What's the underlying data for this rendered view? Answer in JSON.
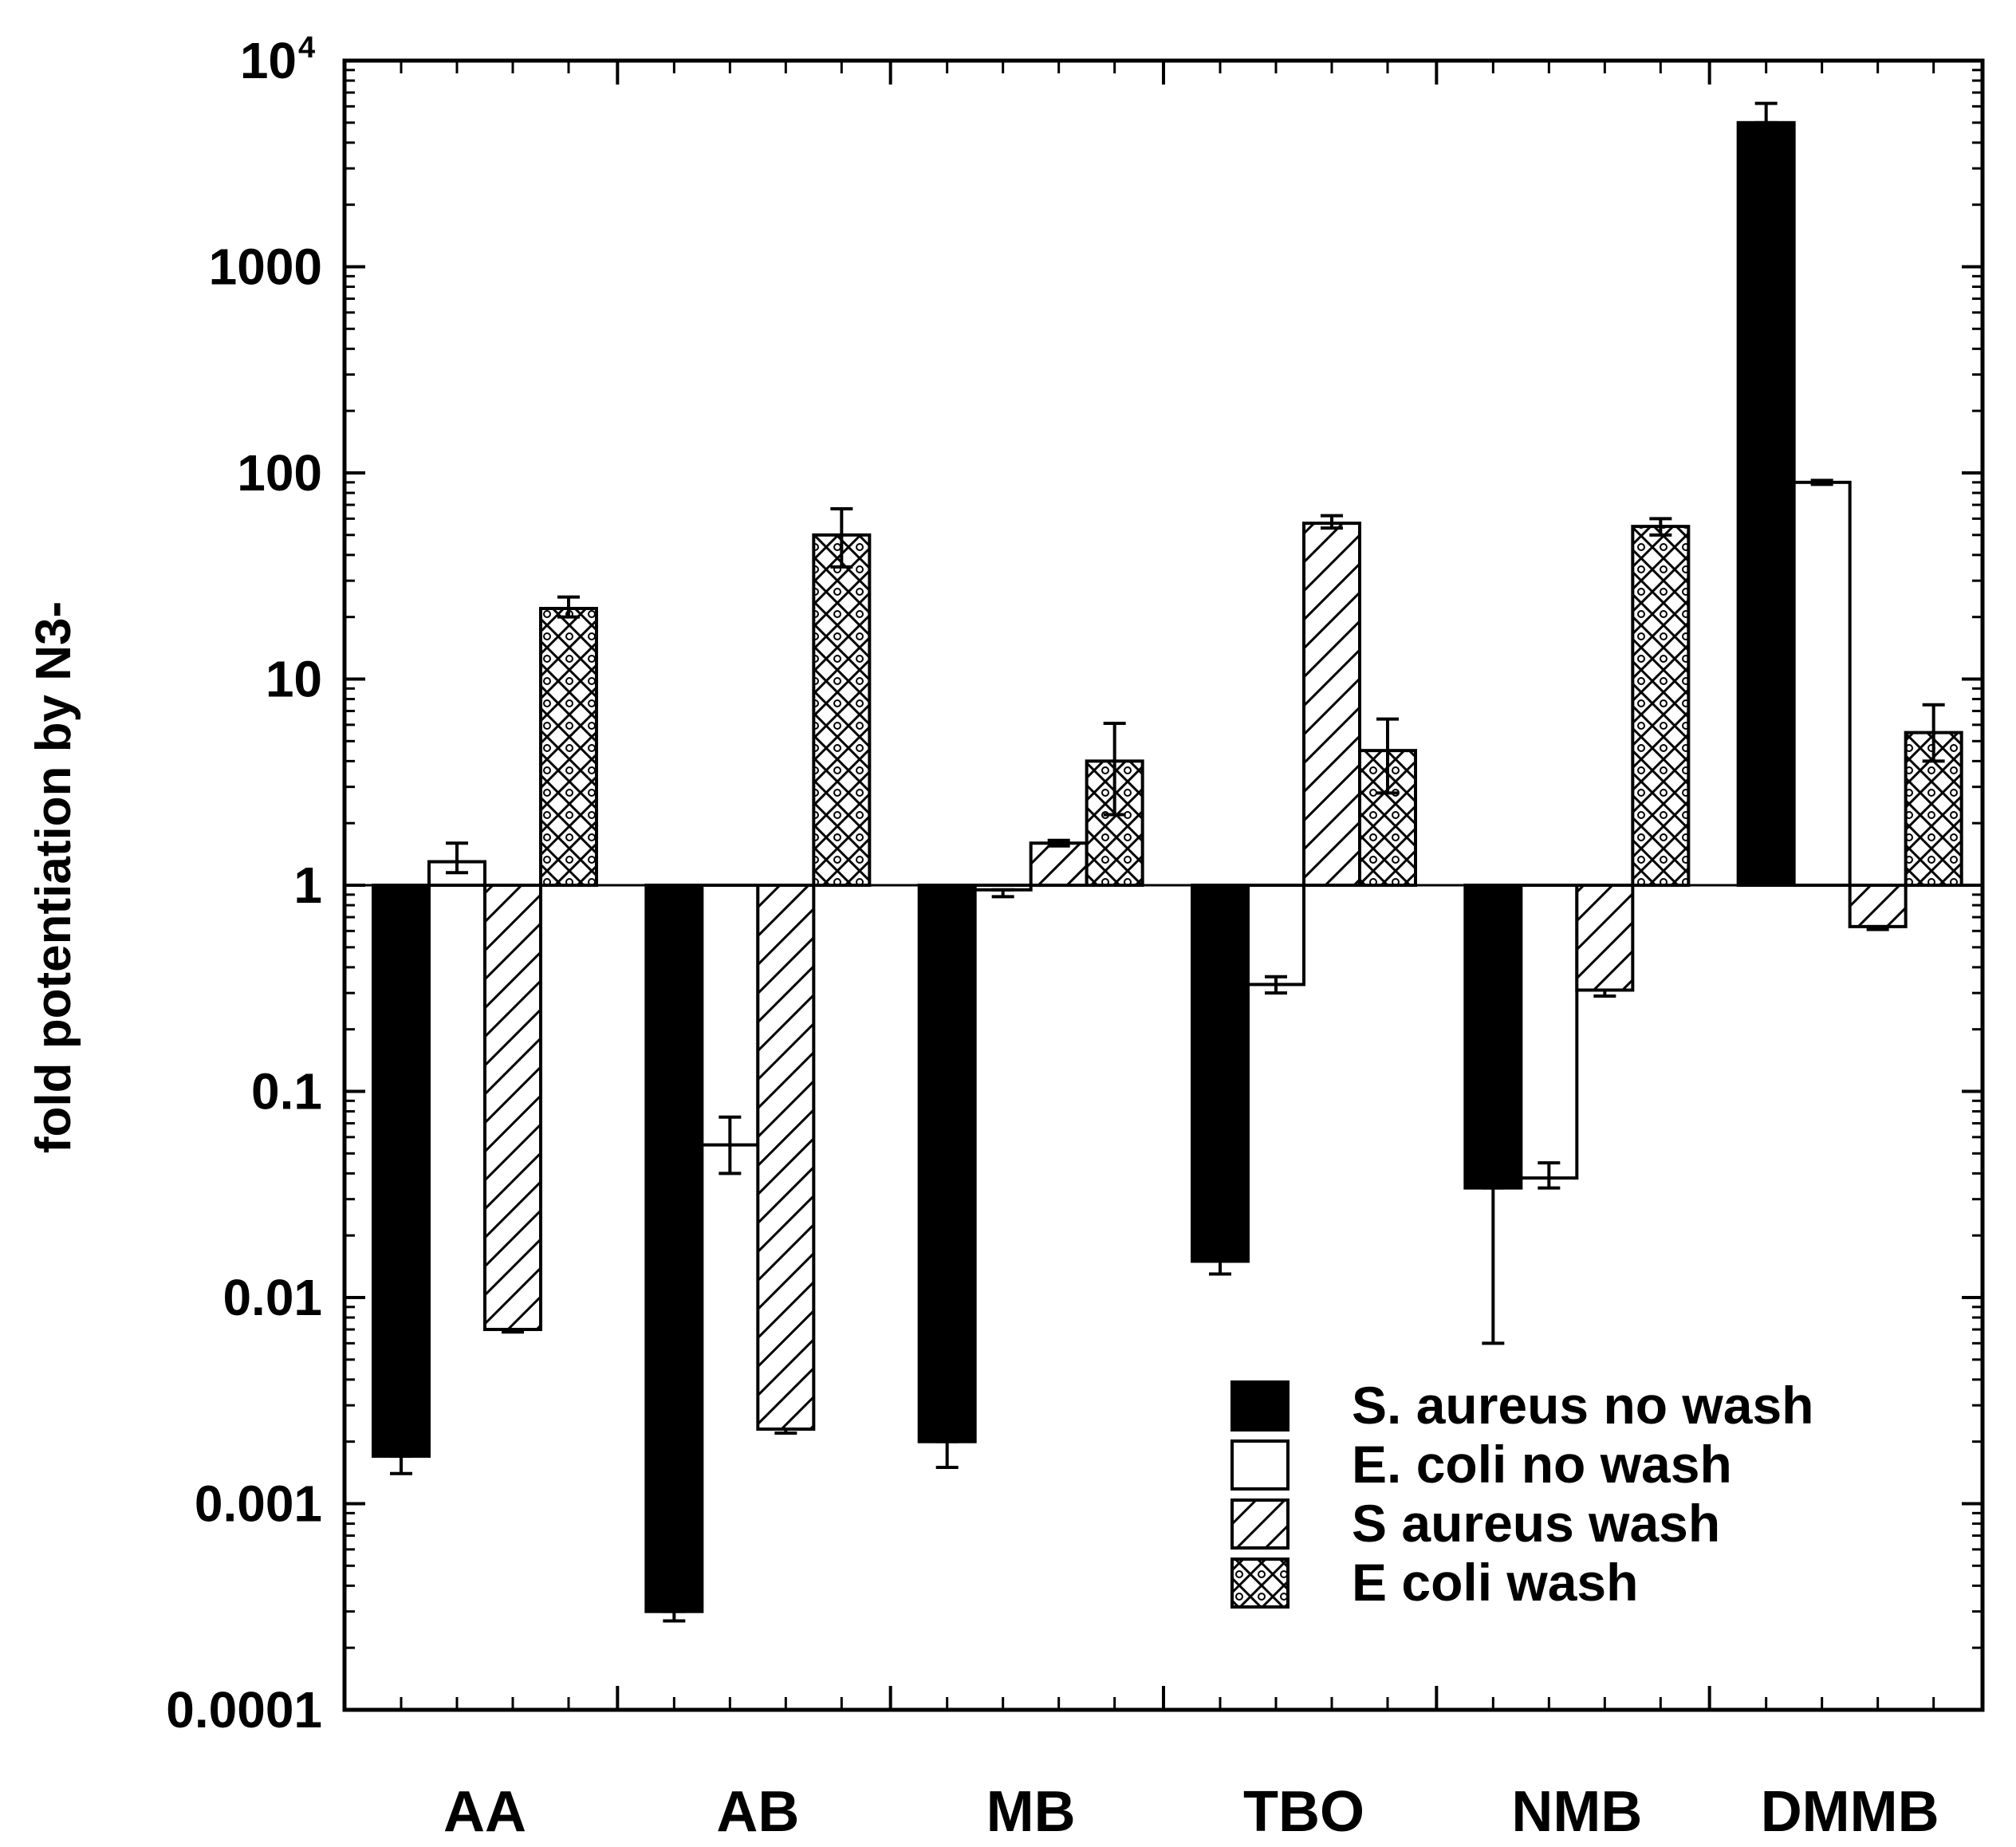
{
  "chart_data": {
    "type": "bar",
    "title": "",
    "xlabel": "",
    "ylabel": "fold potentiation by N3-",
    "yscale": "log",
    "ylim": [
      0.0001,
      10000
    ],
    "baseline": 1,
    "categories": [
      "AA",
      "AB",
      "MB",
      "TBO",
      "NMB",
      "DMMB"
    ],
    "series": [
      {
        "name": "S. aureus no wash",
        "fill": "solid",
        "values": [
          0.0017,
          0.0003,
          0.002,
          0.015,
          0.034,
          5000
        ],
        "err_low": [
          0.0014,
          0.00027,
          0.0015,
          0.013,
          0.006,
          5000
        ],
        "err_high": [
          0.0017,
          0.0003,
          0.002,
          0.015,
          0.034,
          6200
        ]
      },
      {
        "name": "E. coli no wash",
        "fill": "open",
        "values": [
          1.3,
          0.055,
          0.95,
          0.33,
          0.038,
          90
        ],
        "err_low": [
          1.15,
          0.04,
          0.88,
          0.3,
          0.034,
          88
        ],
        "err_high": [
          1.6,
          0.075,
          0.95,
          0.36,
          0.045,
          92
        ]
      },
      {
        "name": "S aureus wash",
        "fill": "hatch",
        "values": [
          0.007,
          0.0023,
          1.6,
          57,
          0.31,
          0.63
        ],
        "err_low": [
          0.0068,
          0.0022,
          1.55,
          54,
          0.29,
          0.61
        ],
        "err_high": [
          0.007,
          0.0023,
          1.65,
          62,
          0.31,
          0.63
        ]
      },
      {
        "name": "E coli wash",
        "fill": "circles",
        "values": [
          22,
          50,
          4,
          4.5,
          55,
          5.5
        ],
        "err_low": [
          20,
          35,
          2.2,
          2.8,
          50,
          4
        ],
        "err_high": [
          25,
          67,
          6.1,
          6.4,
          60,
          7.5
        ]
      }
    ],
    "yticks": [
      {
        "value": 0.0001,
        "label": "0.0001"
      },
      {
        "value": 0.001,
        "label": "0.001"
      },
      {
        "value": 0.01,
        "label": "0.01"
      },
      {
        "value": 0.1,
        "label": "0.1"
      },
      {
        "value": 1,
        "label": "1"
      },
      {
        "value": 10,
        "label": "10"
      },
      {
        "value": 100,
        "label": "100"
      },
      {
        "value": 1000,
        "label": "1000"
      }
    ],
    "ytick_top": {
      "value": 10000,
      "base": "10",
      "exponent": "4"
    },
    "legend": {
      "position": "bottom-right"
    },
    "grid": false,
    "colors": {
      "bar_stroke": "#000000",
      "solid_fill": "#000000",
      "open_fill": "#ffffff"
    }
  }
}
